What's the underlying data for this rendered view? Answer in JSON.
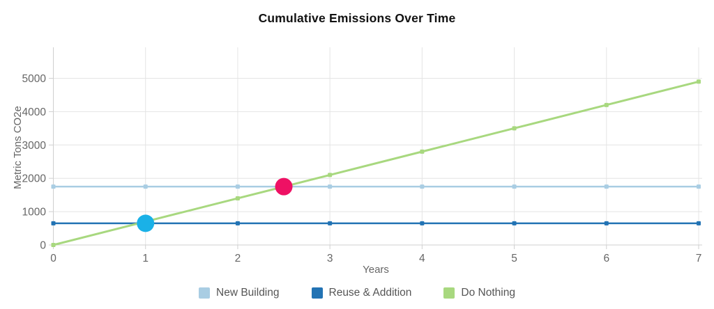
{
  "title": "Cumulative Emissions Over Time",
  "chart_data": {
    "type": "line",
    "title": "Cumulative Emissions Over Time",
    "xlabel": "Years",
    "ylabel": "Metric Tons CO2e",
    "x": [
      0,
      1,
      2,
      3,
      4,
      5,
      6,
      7
    ],
    "xlim": [
      0,
      7
    ],
    "ylim": [
      0,
      5900
    ],
    "yticks": [
      0,
      1000,
      2000,
      3000,
      4000,
      5000
    ],
    "grid": true,
    "legend_position": "bottom",
    "series": [
      {
        "name": "New Building",
        "color": "#a9cde3",
        "values": [
          1750,
          1750,
          1750,
          1750,
          1750,
          1750,
          1750,
          1750
        ]
      },
      {
        "name": "Reuse & Addition",
        "color": "#2273b4",
        "values": [
          650,
          650,
          650,
          650,
          650,
          650,
          650,
          650
        ]
      },
      {
        "name": "Do Nothing",
        "color": "#a8d87f",
        "values": [
          0,
          700,
          1400,
          2100,
          2800,
          3500,
          4200,
          4900
        ]
      }
    ],
    "highlight_points": [
      {
        "x": 1.0,
        "y": 650,
        "color": "#1ab1e7"
      },
      {
        "x": 2.5,
        "y": 1750,
        "color": "#ee1164"
      }
    ]
  }
}
